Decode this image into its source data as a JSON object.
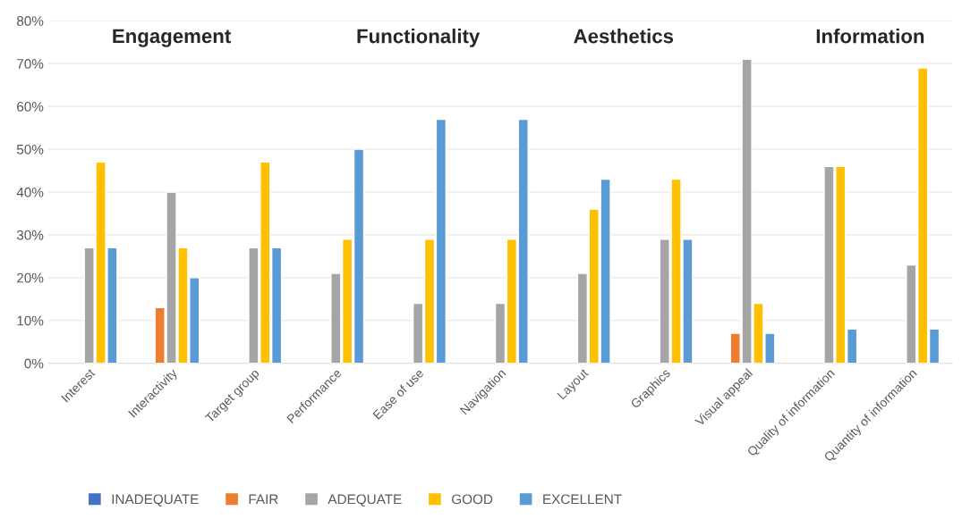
{
  "chart_data": {
    "type": "bar",
    "categories": [
      "Interest",
      "Interactivity",
      "Target group",
      "Performance",
      "Ease of use",
      "Navigation",
      "Layout",
      "Graphics",
      "Visual appeal",
      "Quality of information",
      "Quantity of information"
    ],
    "series": [
      {
        "name": "INADEQUATE",
        "color": "#4472c4",
        "values": [
          null,
          null,
          null,
          null,
          null,
          null,
          null,
          null,
          null,
          null,
          null
        ]
      },
      {
        "name": "FAIR",
        "color": "#ed7d31",
        "values": [
          null,
          13,
          null,
          null,
          null,
          null,
          null,
          null,
          7,
          null,
          null
        ]
      },
      {
        "name": "ADEQUATE",
        "color": "#a5a5a5",
        "values": [
          27,
          40,
          27,
          21,
          14,
          14,
          21,
          29,
          71,
          46,
          23
        ]
      },
      {
        "name": "GOOD",
        "color": "#ffc000",
        "values": [
          47,
          27,
          47,
          29,
          29,
          29,
          36,
          43,
          14,
          46,
          69
        ]
      },
      {
        "name": "EXCELLENT",
        "color": "#5b9bd5",
        "values": [
          27,
          20,
          27,
          50,
          57,
          57,
          43,
          29,
          7,
          8,
          8
        ]
      }
    ],
    "annotations": [
      "Engagement",
      "Functionality",
      "Aesthetics",
      "Information"
    ],
    "ylim": [
      0,
      80
    ],
    "yticks": [
      {
        "value": 0,
        "label": "0%"
      },
      {
        "value": 10,
        "label": "10%"
      },
      {
        "value": 20,
        "label": "20%"
      },
      {
        "value": 30,
        "label": "30%"
      },
      {
        "value": 40,
        "label": "40%"
      },
      {
        "value": 50,
        "label": "50%"
      },
      {
        "value": 60,
        "label": "60%"
      },
      {
        "value": 70,
        "label": "70%"
      },
      {
        "value": 80,
        "label": "80%"
      }
    ],
    "grid": "y",
    "legend": "bottom"
  }
}
